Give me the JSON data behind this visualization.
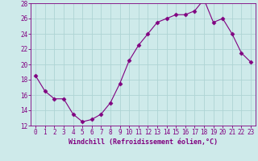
{
  "x": [
    0,
    1,
    2,
    3,
    4,
    5,
    6,
    7,
    8,
    9,
    10,
    11,
    12,
    13,
    14,
    15,
    16,
    17,
    18,
    19,
    20,
    21,
    22,
    23
  ],
  "y": [
    18.5,
    16.5,
    15.5,
    15.5,
    13.5,
    12.5,
    12.8,
    13.5,
    15.0,
    17.5,
    20.5,
    22.5,
    24.0,
    25.5,
    26.0,
    26.5,
    26.5,
    27.0,
    28.5,
    25.5,
    26.0,
    24.0,
    21.5,
    20.3
  ],
  "line_color": "#800080",
  "marker": "D",
  "marker_size": 2.5,
  "bg_color": "#ceeaea",
  "grid_color": "#aed4d4",
  "xlabel": "Windchill (Refroidissement éolien,°C)",
  "tick_color": "#800080",
  "xlim_min": -0.5,
  "xlim_max": 23.5,
  "ylim_min": 12,
  "ylim_max": 28,
  "yticks": [
    12,
    14,
    16,
    18,
    20,
    22,
    24,
    26,
    28
  ],
  "xticks": [
    0,
    1,
    2,
    3,
    4,
    5,
    6,
    7,
    8,
    9,
    10,
    11,
    12,
    13,
    14,
    15,
    16,
    17,
    18,
    19,
    20,
    21,
    22,
    23
  ],
  "font_size": 5.5,
  "xlabel_fontsize": 6.0,
  "linewidth": 0.8
}
